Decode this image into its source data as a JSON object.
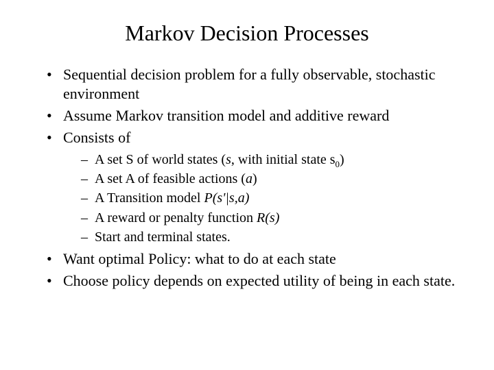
{
  "background_color": "#ffffff",
  "text_color": "#000000",
  "title": "Markov Decision Processes",
  "title_fontsize": 32,
  "body_fontsize": 22,
  "sub_fontsize": 20,
  "bullets": [
    {
      "text": "Sequential decision problem for a fully observable, stochastic environment"
    },
    {
      "text": "Assume Markov transition model and additive reward"
    },
    {
      "text": "Consists of",
      "children": [
        {
          "segments": [
            {
              "t": "A set S of world states ("
            },
            {
              "t": "s",
              "italic": true
            },
            {
              "t": ", with initial state s"
            },
            {
              "t": "0",
              "sub": true
            },
            {
              "t": ")"
            }
          ]
        },
        {
          "segments": [
            {
              "t": "A set A of feasible actions ("
            },
            {
              "t": "a",
              "italic": true
            },
            {
              "t": ")"
            }
          ]
        },
        {
          "segments": [
            {
              "t": "A Transition model "
            },
            {
              "t": "P(s'|s,a)",
              "italic": true
            }
          ]
        },
        {
          "segments": [
            {
              "t": "A reward or penalty function "
            },
            {
              "t": "R(s)",
              "italic": true
            }
          ]
        },
        {
          "segments": [
            {
              "t": "Start and terminal states."
            }
          ]
        }
      ]
    },
    {
      "text": "Want optimal Policy: what to do  at each state"
    },
    {
      "text": "Choose policy depends on expected utility of being in each state."
    }
  ]
}
